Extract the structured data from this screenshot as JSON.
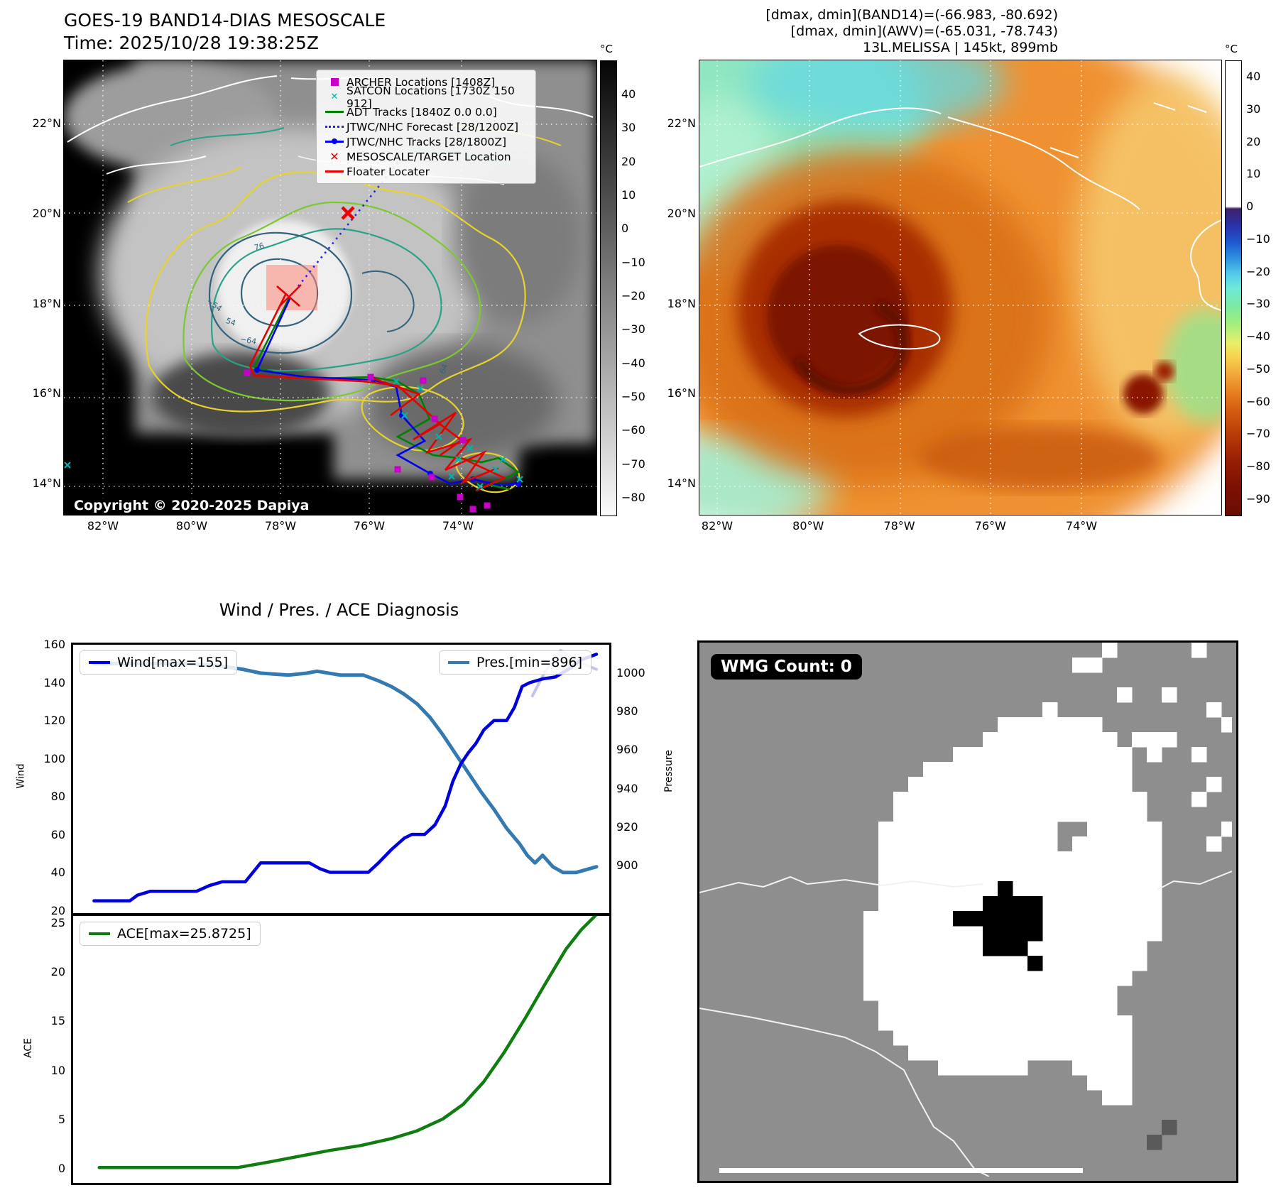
{
  "panel_tl": {
    "title": "GOES-19 BAND14-DIAS MESOSCALE",
    "subtitle": "Time: 2025/10/28 19:38:25Z",
    "copyright": "Copyright © 2020-2025 Dapiya",
    "legend": [
      {
        "label": "ARCHER Locations [1408Z]",
        "marker": "square",
        "color": "#c800c8",
        "icon": "archer-square-icon"
      },
      {
        "label": "SATCON Locations [1730Z 150 912]",
        "marker": "x",
        "color": "#00b5ad",
        "icon": "satcon-x-icon"
      },
      {
        "label": "ADT Tracks [1840Z 0.0 0.0]",
        "marker": "line",
        "color": "#007f00",
        "icon": "adt-line-icon"
      },
      {
        "label": "JTWC/NHC Forecast [28/1200Z]",
        "marker": "dotted",
        "color": "#2222ee",
        "icon": "forecast-dotted-icon"
      },
      {
        "label": "JTWC/NHC Tracks [28/1800Z]",
        "marker": "linedot",
        "color": "#0000ee",
        "icon": "track-linedot-icon"
      },
      {
        "label": "MESOSCALE/TARGET Location",
        "marker": "xbold",
        "color": "#ee0000",
        "icon": "target-x-icon"
      },
      {
        "label": "Floater Locater",
        "marker": "line",
        "color": "#ee0000",
        "icon": "floater-line-icon"
      }
    ],
    "colorbar": {
      "unit": "°C",
      "ticks": [
        "40",
        "30",
        "20",
        "10",
        "0",
        "−10",
        "−20",
        "−30",
        "−40",
        "−50",
        "−60",
        "−70",
        "−80"
      ],
      "stops": [
        {
          "c": "#050505",
          "p": 0
        },
        {
          "c": "#2a2a2a",
          "p": 15
        },
        {
          "c": "#555555",
          "p": 33
        },
        {
          "c": "#808080",
          "p": 50
        },
        {
          "c": "#a8a8a8",
          "p": 67
        },
        {
          "c": "#d0d0d0",
          "p": 83
        },
        {
          "c": "#fbfbfb",
          "p": 100
        }
      ]
    },
    "x_ticks": [
      "82°W",
      "80°W",
      "78°W",
      "76°W",
      "74°W"
    ],
    "y_ticks": [
      "22°N",
      "20°N",
      "18°N",
      "16°N",
      "14°N"
    ],
    "contour_labels": [
      "76",
      "54",
      "−54",
      "−64",
      "64"
    ]
  },
  "panel_tr": {
    "header_lines": [
      "[dmax, dmin](BAND14)=(-66.983, -80.692)",
      "[dmax, dmin](AWV)=(-65.031, -78.743)",
      "13L.MELISSA | 145kt, 899mb"
    ],
    "colorbar": {
      "unit": "°C",
      "ticks": [
        "40",
        "30",
        "20",
        "10",
        "0",
        "−10",
        "−20",
        "−30",
        "−40",
        "−50",
        "−60",
        "−70",
        "−80",
        "−90"
      ],
      "stops": [
        {
          "c": "#ffffff",
          "p": 0
        },
        {
          "c": "#ffffff",
          "p": 32
        },
        {
          "c": "#3f2166",
          "p": 32.5
        },
        {
          "c": "#2b2fa8",
          "p": 36
        },
        {
          "c": "#1e5ad0",
          "p": 40
        },
        {
          "c": "#2f93e0",
          "p": 43.5
        },
        {
          "c": "#55cdea",
          "p": 47
        },
        {
          "c": "#6fe9d8",
          "p": 50
        },
        {
          "c": "#7cea9f",
          "p": 54
        },
        {
          "c": "#a5ee7d",
          "p": 58
        },
        {
          "c": "#e8ef6a",
          "p": 62
        },
        {
          "c": "#f6d44e",
          "p": 65
        },
        {
          "c": "#f2a73a",
          "p": 69
        },
        {
          "c": "#e67e1e",
          "p": 73
        },
        {
          "c": "#d45c10",
          "p": 77
        },
        {
          "c": "#b93c08",
          "p": 82
        },
        {
          "c": "#971e05",
          "p": 88
        },
        {
          "c": "#7c1004",
          "p": 94
        },
        {
          "c": "#6b0d03",
          "p": 100
        }
      ]
    },
    "x_ticks": [
      "82°W",
      "80°W",
      "78°W",
      "76°W",
      "74°W"
    ],
    "y_ticks": [
      "22°N",
      "20°N",
      "18°N",
      "16°N",
      "14°N"
    ]
  },
  "panel_br": {
    "badge": "WMG Count: 0"
  },
  "chart_data": [
    {
      "type": "line",
      "title": "Wind / Pres. / ACE Diagnosis",
      "subplot": "wind-pressure",
      "ylabel": "Wind",
      "ylabel_right": "Pressure",
      "yticks_left": [
        "160",
        "140",
        "120",
        "100",
        "80",
        "60",
        "40",
        "20"
      ],
      "yticks_right": [
        "1000",
        "980",
        "960",
        "940",
        "920",
        "900"
      ],
      "ylim_left": [
        19,
        161
      ],
      "ylim_right": [
        876,
        1016
      ],
      "x_axis_note": "time, normalized 0–1, no tick labels shown",
      "legend": [
        {
          "name": "Wind[max=155]",
          "color": "#0000dd"
        },
        {
          "name": "Pres.[min=896]",
          "color": "#3579b1"
        }
      ],
      "series": [
        {
          "name": "Wind",
          "axis": "left",
          "color": "#0000dd",
          "width": 4.5,
          "x": [
            0.02,
            0.09,
            0.105,
            0.13,
            0.22,
            0.245,
            0.27,
            0.315,
            0.33,
            0.345,
            0.44,
            0.46,
            0.48,
            0.555,
            0.575,
            0.6,
            0.625,
            0.64,
            0.665,
            0.685,
            0.705,
            0.72,
            0.735,
            0.75,
            0.765,
            0.78,
            0.8,
            0.825,
            0.84,
            0.855,
            0.87,
            0.895,
            0.92,
            0.945,
            0.97,
            1.0
          ],
          "y": [
            25,
            25,
            28,
            30,
            30,
            33,
            35,
            35,
            40,
            45,
            45,
            42,
            40,
            40,
            45,
            52,
            58,
            60,
            60,
            65,
            75,
            88,
            97,
            103,
            108,
            115,
            120,
            120,
            127,
            138,
            140,
            142,
            143,
            147,
            152,
            155
          ]
        },
        {
          "name": "Wind forecast (faint)",
          "axis": "left",
          "color": "#c3c3f2",
          "width": 4,
          "x": [
            0.875,
            0.9,
            0.93,
            0.965,
            1.0
          ],
          "y": [
            133,
            146,
            157,
            151,
            147
          ]
        },
        {
          "name": "Pres.",
          "axis": "right",
          "color": "#3579b1",
          "width": 5,
          "x": [
            0.02,
            0.2,
            0.26,
            0.31,
            0.345,
            0.4,
            0.435,
            0.455,
            0.5,
            0.545,
            0.575,
            0.6,
            0.625,
            0.65,
            0.675,
            0.7,
            0.725,
            0.75,
            0.775,
            0.8,
            0.825,
            0.85,
            0.865,
            0.88,
            0.895,
            0.915,
            0.935,
            0.96,
            1.0
          ],
          "y": [
            1005,
            1005,
            1004,
            1002,
            1000,
            999,
            1000,
            1001,
            999,
            999,
            996,
            993,
            989,
            984,
            977,
            968,
            958,
            948,
            938,
            929,
            919,
            911,
            905,
            901,
            905,
            899,
            896,
            896,
            899
          ]
        }
      ]
    },
    {
      "type": "line",
      "subplot": "ace",
      "ylabel": "ACE",
      "yticks_left": [
        "25",
        "20",
        "15",
        "10",
        "5",
        "0"
      ],
      "ylim_left": [
        -0.9,
        26.2
      ],
      "legend": [
        {
          "name": "ACE[max=25.8725]",
          "color": "#0f7d0f"
        }
      ],
      "series": [
        {
          "name": "ACE",
          "axis": "left",
          "color": "#0f7d0f",
          "width": 4.5,
          "x": [
            0.03,
            0.3,
            0.36,
            0.42,
            0.48,
            0.54,
            0.6,
            0.65,
            0.7,
            0.74,
            0.78,
            0.82,
            0.86,
            0.9,
            0.94,
            0.97,
            1.0
          ],
          "y": [
            0.05,
            0.05,
            0.6,
            1.2,
            1.8,
            2.3,
            3.0,
            3.8,
            5.0,
            6.5,
            8.8,
            11.8,
            15.2,
            18.8,
            22.3,
            24.3,
            25.87
          ]
        }
      ]
    }
  ]
}
